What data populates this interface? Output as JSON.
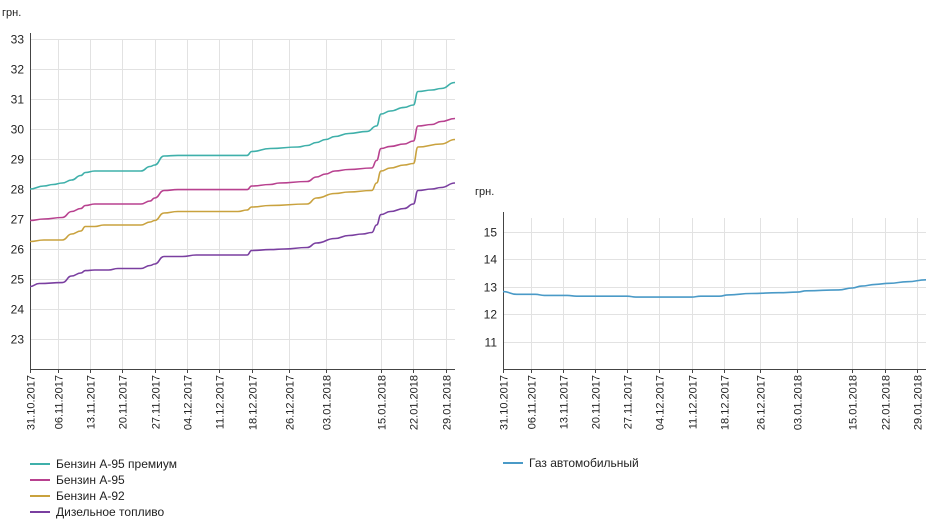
{
  "chart_data": [
    {
      "type": "line",
      "ylabel": "грн.",
      "ylim": [
        22,
        33
      ],
      "yticks": [
        "23",
        "24",
        "25",
        "26",
        "27",
        "28",
        "29",
        "30",
        "31",
        "32",
        "33"
      ],
      "xlim": [
        "2017-10-31",
        "2018-01-31"
      ],
      "xticks": [
        {
          "date": "2017-10-31",
          "label": "31.10.2017"
        },
        {
          "date": "2017-11-06",
          "label": "06.11.2017"
        },
        {
          "date": "2017-11-13",
          "label": "13.11.2017"
        },
        {
          "date": "2017-11-20",
          "label": "20.11.2017"
        },
        {
          "date": "2017-11-27",
          "label": "27.11.2017"
        },
        {
          "date": "2017-12-04",
          "label": "04.12.2017"
        },
        {
          "date": "2017-12-11",
          "label": "11.12.2017"
        },
        {
          "date": "2017-12-18",
          "label": "18.12.2017"
        },
        {
          "date": "2017-12-26",
          "label": "26.12.2017"
        },
        {
          "date": "2018-01-03",
          "label": "03.01.2018"
        },
        {
          "date": "2018-01-15",
          "label": "15.01.2018"
        },
        {
          "date": "2018-01-22",
          "label": "22.01.2018"
        },
        {
          "date": "2018-01-29",
          "label": "29.01.2018"
        }
      ],
      "series": [
        {
          "name": "Бензин А-95 премиум",
          "color": "#3fb0aa",
          "points": [
            [
              "2017-10-31",
              28.0
            ],
            [
              "2017-11-03",
              28.1
            ],
            [
              "2017-11-05",
              28.15
            ],
            [
              "2017-11-07",
              28.2
            ],
            [
              "2017-11-09",
              28.3
            ],
            [
              "2017-11-11",
              28.45
            ],
            [
              "2017-11-12",
              28.55
            ],
            [
              "2017-11-14",
              28.6
            ],
            [
              "2017-11-24",
              28.6
            ],
            [
              "2017-11-26",
              28.75
            ],
            [
              "2017-11-27",
              28.8
            ],
            [
              "2017-11-29",
              29.1
            ],
            [
              "2017-12-02",
              29.12
            ],
            [
              "2017-12-17",
              29.12
            ],
            [
              "2017-12-18",
              29.25
            ],
            [
              "2017-12-22",
              29.35
            ],
            [
              "2017-12-28",
              29.4
            ],
            [
              "2017-12-30",
              29.45
            ],
            [
              "2018-01-01",
              29.55
            ],
            [
              "2018-01-03",
              29.65
            ],
            [
              "2018-01-05",
              29.75
            ],
            [
              "2018-01-08",
              29.85
            ],
            [
              "2018-01-12",
              29.92
            ],
            [
              "2018-01-14",
              30.1
            ],
            [
              "2018-01-15",
              30.5
            ],
            [
              "2018-01-17",
              30.6
            ],
            [
              "2018-01-20",
              30.72
            ],
            [
              "2018-01-22",
              30.8
            ],
            [
              "2018-01-23",
              31.25
            ],
            [
              "2018-01-26",
              31.3
            ],
            [
              "2018-01-28",
              31.35
            ],
            [
              "2018-01-31",
              31.55
            ]
          ]
        },
        {
          "name": "Бензин А-95",
          "color": "#b8418f",
          "points": [
            [
              "2017-10-31",
              26.95
            ],
            [
              "2017-11-03",
              27.0
            ],
            [
              "2017-11-07",
              27.05
            ],
            [
              "2017-11-09",
              27.25
            ],
            [
              "2017-11-11",
              27.35
            ],
            [
              "2017-11-12",
              27.45
            ],
            [
              "2017-11-14",
              27.5
            ],
            [
              "2017-11-24",
              27.5
            ],
            [
              "2017-11-26",
              27.6
            ],
            [
              "2017-11-27",
              27.7
            ],
            [
              "2017-11-29",
              27.95
            ],
            [
              "2017-12-02",
              27.98
            ],
            [
              "2017-12-17",
              27.98
            ],
            [
              "2017-12-18",
              28.1
            ],
            [
              "2017-12-22",
              28.15
            ],
            [
              "2017-12-24",
              28.2
            ],
            [
              "2017-12-30",
              28.25
            ],
            [
              "2018-01-01",
              28.4
            ],
            [
              "2018-01-03",
              28.5
            ],
            [
              "2018-01-05",
              28.6
            ],
            [
              "2018-01-08",
              28.65
            ],
            [
              "2018-01-13",
              28.7
            ],
            [
              "2018-01-14",
              28.95
            ],
            [
              "2018-01-15",
              29.35
            ],
            [
              "2018-01-17",
              29.42
            ],
            [
              "2018-01-20",
              29.5
            ],
            [
              "2018-01-22",
              29.6
            ],
            [
              "2018-01-23",
              30.1
            ],
            [
              "2018-01-26",
              30.15
            ],
            [
              "2018-01-28",
              30.25
            ],
            [
              "2018-01-31",
              30.35
            ]
          ]
        },
        {
          "name": "Бензин А-92",
          "color": "#c9a23e",
          "points": [
            [
              "2017-10-31",
              26.25
            ],
            [
              "2017-11-03",
              26.3
            ],
            [
              "2017-11-07",
              26.3
            ],
            [
              "2017-11-09",
              26.5
            ],
            [
              "2017-11-11",
              26.6
            ],
            [
              "2017-11-12",
              26.75
            ],
            [
              "2017-11-14",
              26.75
            ],
            [
              "2017-11-16",
              26.8
            ],
            [
              "2017-11-24",
              26.8
            ],
            [
              "2017-11-26",
              26.9
            ],
            [
              "2017-11-27",
              26.95
            ],
            [
              "2017-11-29",
              27.2
            ],
            [
              "2017-12-02",
              27.25
            ],
            [
              "2017-12-15",
              27.25
            ],
            [
              "2017-12-17",
              27.3
            ],
            [
              "2017-12-18",
              27.4
            ],
            [
              "2017-12-22",
              27.45
            ],
            [
              "2017-12-30",
              27.5
            ],
            [
              "2018-01-01",
              27.7
            ],
            [
              "2018-01-05",
              27.85
            ],
            [
              "2018-01-08",
              27.9
            ],
            [
              "2018-01-13",
              27.95
            ],
            [
              "2018-01-14",
              28.2
            ],
            [
              "2018-01-15",
              28.6
            ],
            [
              "2018-01-17",
              28.7
            ],
            [
              "2018-01-20",
              28.8
            ],
            [
              "2018-01-22",
              28.85
            ],
            [
              "2018-01-23",
              29.4
            ],
            [
              "2018-01-28",
              29.5
            ],
            [
              "2018-01-31",
              29.65
            ]
          ]
        },
        {
          "name": "Дизельное топливо",
          "color": "#7a3fa0",
          "points": [
            [
              "2017-10-31",
              24.75
            ],
            [
              "2017-11-02",
              24.85
            ],
            [
              "2017-11-07",
              24.88
            ],
            [
              "2017-11-09",
              25.1
            ],
            [
              "2017-11-11",
              25.2
            ],
            [
              "2017-11-12",
              25.28
            ],
            [
              "2017-11-14",
              25.3
            ],
            [
              "2017-11-17",
              25.3
            ],
            [
              "2017-11-19",
              25.35
            ],
            [
              "2017-11-24",
              25.35
            ],
            [
              "2017-11-26",
              25.45
            ],
            [
              "2017-11-27",
              25.5
            ],
            [
              "2017-11-29",
              25.75
            ],
            [
              "2017-12-03",
              25.75
            ],
            [
              "2017-12-06",
              25.8
            ],
            [
              "2017-12-17",
              25.8
            ],
            [
              "2017-12-18",
              25.95
            ],
            [
              "2017-12-22",
              25.98
            ],
            [
              "2017-12-25",
              26.0
            ],
            [
              "2017-12-30",
              26.05
            ],
            [
              "2018-01-01",
              26.2
            ],
            [
              "2018-01-05",
              26.35
            ],
            [
              "2018-01-08",
              26.45
            ],
            [
              "2018-01-11",
              26.5
            ],
            [
              "2018-01-13",
              26.55
            ],
            [
              "2018-01-14",
              26.8
            ],
            [
              "2018-01-15",
              27.15
            ],
            [
              "2018-01-17",
              27.25
            ],
            [
              "2018-01-20",
              27.35
            ],
            [
              "2018-01-22",
              27.5
            ],
            [
              "2018-01-23",
              27.95
            ],
            [
              "2018-01-26",
              28.0
            ],
            [
              "2018-01-28",
              28.05
            ],
            [
              "2018-01-31",
              28.2
            ]
          ]
        }
      ]
    },
    {
      "type": "line",
      "ylabel": "грн.",
      "ylim": [
        10,
        15.5
      ],
      "yticks": [
        "11",
        "12",
        "13",
        "14",
        "15"
      ],
      "xlim": [
        "2017-10-31",
        "2018-01-31"
      ],
      "xticks": [
        {
          "date": "2017-10-31",
          "label": "31.10.2017"
        },
        {
          "date": "2017-11-06",
          "label": "06.11.2017"
        },
        {
          "date": "2017-11-13",
          "label": "13.11.2017"
        },
        {
          "date": "2017-11-20",
          "label": "20.11.2017"
        },
        {
          "date": "2017-11-27",
          "label": "27.11.2017"
        },
        {
          "date": "2017-12-04",
          "label": "04.12.2017"
        },
        {
          "date": "2017-12-11",
          "label": "11.12.2017"
        },
        {
          "date": "2017-12-18",
          "label": "18.12.2017"
        },
        {
          "date": "2017-12-26",
          "label": "26.12.2017"
        },
        {
          "date": "2018-01-03",
          "label": "03.01.2018"
        },
        {
          "date": "2018-01-15",
          "label": "15.01.2018"
        },
        {
          "date": "2018-01-22",
          "label": "22.01.2018"
        },
        {
          "date": "2018-01-29",
          "label": "29.01.2018"
        }
      ],
      "series": [
        {
          "name": "Газ автомобильный",
          "color": "#4a9ac7",
          "points": [
            [
              "2017-10-31",
              12.82
            ],
            [
              "2017-11-03",
              12.72
            ],
            [
              "2017-11-07",
              12.72
            ],
            [
              "2017-11-09",
              12.68
            ],
            [
              "2017-11-14",
              12.68
            ],
            [
              "2017-11-16",
              12.65
            ],
            [
              "2017-11-27",
              12.65
            ],
            [
              "2017-11-29",
              12.62
            ],
            [
              "2017-12-11",
              12.62
            ],
            [
              "2017-12-13",
              12.65
            ],
            [
              "2017-12-17",
              12.65
            ],
            [
              "2017-12-19",
              12.7
            ],
            [
              "2017-12-24",
              12.75
            ],
            [
              "2017-12-30",
              12.78
            ],
            [
              "2018-01-03",
              12.8
            ],
            [
              "2018-01-05",
              12.85
            ],
            [
              "2018-01-12",
              12.88
            ],
            [
              "2018-01-15",
              12.95
            ],
            [
              "2018-01-17",
              13.02
            ],
            [
              "2018-01-20",
              13.08
            ],
            [
              "2018-01-23",
              13.12
            ],
            [
              "2018-01-27",
              13.18
            ],
            [
              "2018-01-31",
              13.25
            ]
          ]
        }
      ]
    }
  ]
}
